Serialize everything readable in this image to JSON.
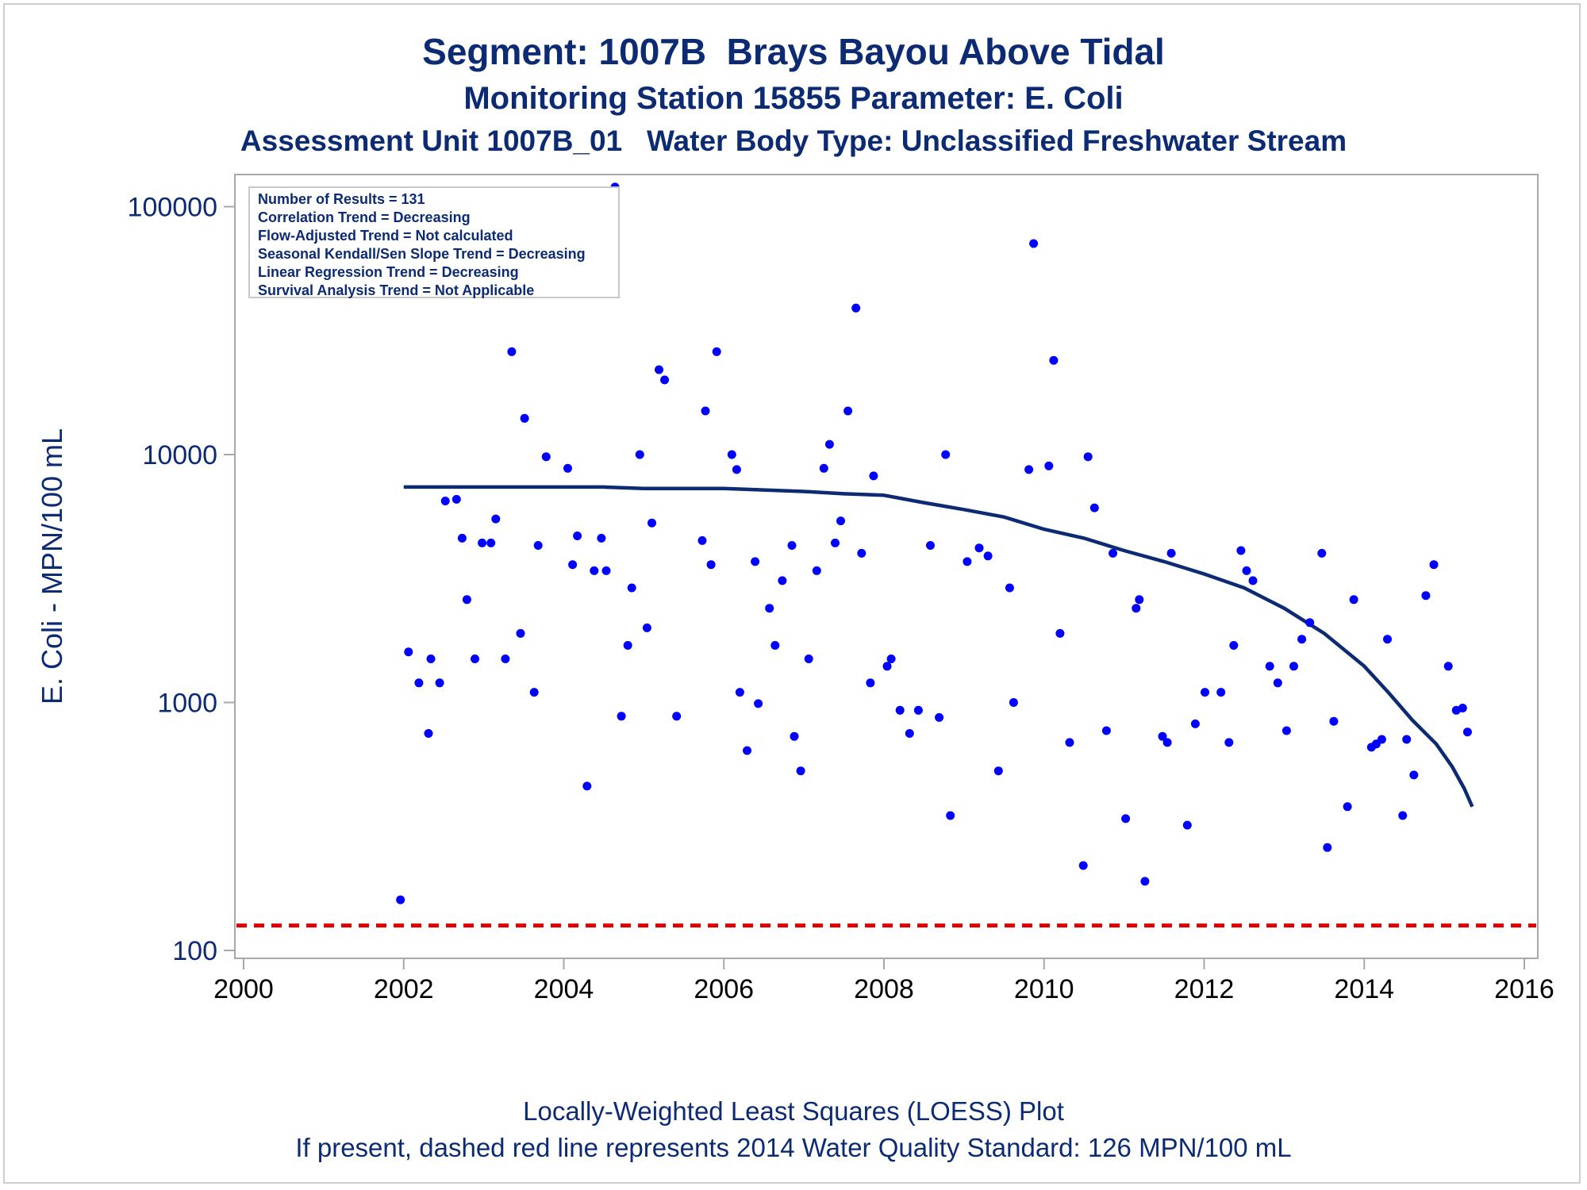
{
  "header": {
    "title": "Segment: 1007B  Brays Bayou Above Tidal",
    "subtitle": "Monitoring Station 15855 Parameter: E. Coli",
    "subtitle2": "Assessment Unit 1007B_01   Water Body Type: Unclassified Freshwater Stream"
  },
  "footer": {
    "line1": "Locally-Weighted Least Squares (LOESS) Plot",
    "line2": "If present, dashed red line represents 2014 Water Quality Standard: 126 MPN/100 mL"
  },
  "stats": [
    "Number of Results = 131",
    "Correlation Trend = Decreasing",
    "Flow-Adjusted Trend = Not calculated",
    "Seasonal Kendall/Sen Slope Trend = Decreasing",
    "Linear Regression Trend = Decreasing",
    "Survival Analysis Trend = Not Applicable"
  ],
  "colors": {
    "text": "#0d2b73",
    "points": "#0000ff",
    "loess": "#0d2b73",
    "standard": "#dd0000",
    "axis": "#a8a8a8"
  },
  "chart_data": {
    "type": "scatter",
    "ylabel": "E. Coli - MPN/100 mL",
    "xlabel": "",
    "x_axis": {
      "min": 2000,
      "max": 2016,
      "ticks": [
        2000,
        2002,
        2004,
        2006,
        2008,
        2010,
        2012,
        2014,
        2016
      ]
    },
    "y_axis": {
      "scale": "log",
      "min": 100,
      "max": 140000,
      "ticks": [
        100,
        1000,
        10000,
        100000
      ]
    },
    "standard_line": {
      "value": 126,
      "style": "dashed"
    },
    "series": [
      {
        "kind": "points",
        "points": [
          [
            2001.96,
            160
          ],
          [
            2002.06,
            1600
          ],
          [
            2002.19,
            1200
          ],
          [
            2002.31,
            750
          ],
          [
            2002.34,
            1500
          ],
          [
            2002.45,
            1200
          ],
          [
            2002.52,
            6500
          ],
          [
            2002.66,
            6600
          ],
          [
            2002.73,
            4600
          ],
          [
            2002.79,
            2600
          ],
          [
            2002.89,
            1500
          ],
          [
            2002.98,
            4400
          ],
          [
            2003.09,
            4400
          ],
          [
            2003.15,
            5500
          ],
          [
            2003.27,
            1500
          ],
          [
            2003.35,
            26000
          ],
          [
            2003.46,
            1900
          ],
          [
            2003.51,
            14000
          ],
          [
            2003.63,
            1100
          ],
          [
            2003.68,
            4300
          ],
          [
            2003.78,
            9800
          ],
          [
            2004.05,
            8800
          ],
          [
            2004.11,
            3600
          ],
          [
            2004.17,
            4700
          ],
          [
            2004.29,
            460
          ],
          [
            2004.38,
            3400
          ],
          [
            2004.47,
            4600
          ],
          [
            2004.53,
            3400
          ],
          [
            2004.64,
            120000
          ],
          [
            2004.72,
            880
          ],
          [
            2004.8,
            1700
          ],
          [
            2004.85,
            2900
          ],
          [
            2004.95,
            10000
          ],
          [
            2005.04,
            2000
          ],
          [
            2005.1,
            5300
          ],
          [
            2005.19,
            22000
          ],
          [
            2005.26,
            20000
          ],
          [
            2005.41,
            880
          ],
          [
            2005.73,
            4500
          ],
          [
            2005.77,
            15000
          ],
          [
            2005.84,
            3600
          ],
          [
            2005.91,
            26000
          ],
          [
            2006.1,
            10000
          ],
          [
            2006.16,
            8700
          ],
          [
            2006.2,
            1100
          ],
          [
            2006.29,
            640
          ],
          [
            2006.39,
            3700
          ],
          [
            2006.43,
            990
          ],
          [
            2006.57,
            2400
          ],
          [
            2006.64,
            1700
          ],
          [
            2006.73,
            3100
          ],
          [
            2006.85,
            4300
          ],
          [
            2006.88,
            730
          ],
          [
            2006.96,
            530
          ],
          [
            2007.06,
            1500
          ],
          [
            2007.16,
            3400
          ],
          [
            2007.25,
            8800
          ],
          [
            2007.32,
            11000
          ],
          [
            2007.39,
            4400
          ],
          [
            2007.46,
            5400
          ],
          [
            2007.55,
            15000
          ],
          [
            2007.65,
            39000
          ],
          [
            2007.72,
            4000
          ],
          [
            2007.83,
            1200
          ],
          [
            2007.87,
            8200
          ],
          [
            2008.04,
            1400
          ],
          [
            2008.09,
            1500
          ],
          [
            2008.2,
            930
          ],
          [
            2008.32,
            750
          ],
          [
            2008.43,
            930
          ],
          [
            2008.58,
            4300
          ],
          [
            2008.69,
            870
          ],
          [
            2008.77,
            10000
          ],
          [
            2008.83,
            350
          ],
          [
            2009.04,
            3700
          ],
          [
            2009.19,
            4200
          ],
          [
            2009.3,
            3900
          ],
          [
            2009.43,
            530
          ],
          [
            2009.57,
            2900
          ],
          [
            2009.62,
            1000
          ],
          [
            2009.81,
            8700
          ],
          [
            2009.87,
            71000
          ],
          [
            2010.06,
            9000
          ],
          [
            2010.12,
            24000
          ],
          [
            2010.2,
            1900
          ],
          [
            2010.32,
            690
          ],
          [
            2010.49,
            220
          ],
          [
            2010.55,
            9800
          ],
          [
            2010.63,
            6100
          ],
          [
            2010.78,
            770
          ],
          [
            2010.86,
            4000
          ],
          [
            2011.02,
            340
          ],
          [
            2011.15,
            2400
          ],
          [
            2011.19,
            2600
          ],
          [
            2011.26,
            190
          ],
          [
            2011.48,
            730
          ],
          [
            2011.54,
            690
          ],
          [
            2011.59,
            4000
          ],
          [
            2011.79,
            320
          ],
          [
            2011.89,
            820
          ],
          [
            2012.01,
            1100
          ],
          [
            2012.21,
            1100
          ],
          [
            2012.31,
            690
          ],
          [
            2012.37,
            1700
          ],
          [
            2012.46,
            4100
          ],
          [
            2012.53,
            3400
          ],
          [
            2012.61,
            3100
          ],
          [
            2012.82,
            1400
          ],
          [
            2012.92,
            1200
          ],
          [
            2013.03,
            770
          ],
          [
            2013.12,
            1400
          ],
          [
            2013.22,
            1800
          ],
          [
            2013.32,
            2100
          ],
          [
            2013.47,
            4000
          ],
          [
            2013.54,
            260
          ],
          [
            2013.62,
            840
          ],
          [
            2013.79,
            380
          ],
          [
            2013.87,
            2600
          ],
          [
            2014.09,
            660
          ],
          [
            2014.15,
            680
          ],
          [
            2014.22,
            710
          ],
          [
            2014.29,
            1800
          ],
          [
            2014.48,
            350
          ],
          [
            2014.53,
            710
          ],
          [
            2014.62,
            510
          ],
          [
            2014.77,
            2700
          ],
          [
            2014.87,
            3600
          ],
          [
            2015.05,
            1400
          ],
          [
            2015.15,
            930
          ],
          [
            2015.23,
            950
          ],
          [
            2015.29,
            760
          ]
        ]
      },
      {
        "kind": "loess",
        "points": [
          [
            2002.0,
            7400
          ],
          [
            2003.0,
            7400
          ],
          [
            2004.0,
            7400
          ],
          [
            2004.5,
            7400
          ],
          [
            2005.0,
            7300
          ],
          [
            2006.0,
            7300
          ],
          [
            2006.5,
            7200
          ],
          [
            2007.0,
            7100
          ],
          [
            2007.5,
            6950
          ],
          [
            2008.0,
            6850
          ],
          [
            2008.5,
            6400
          ],
          [
            2009.0,
            6000
          ],
          [
            2009.5,
            5600
          ],
          [
            2010.0,
            5000
          ],
          [
            2010.5,
            4600
          ],
          [
            2011.0,
            4100
          ],
          [
            2011.5,
            3700
          ],
          [
            2012.0,
            3300
          ],
          [
            2012.5,
            2900
          ],
          [
            2013.0,
            2400
          ],
          [
            2013.5,
            1900
          ],
          [
            2014.0,
            1400
          ],
          [
            2014.3,
            1100
          ],
          [
            2014.6,
            850
          ],
          [
            2014.9,
            680
          ],
          [
            2015.1,
            550
          ],
          [
            2015.25,
            450
          ],
          [
            2015.35,
            380
          ]
        ]
      }
    ]
  }
}
